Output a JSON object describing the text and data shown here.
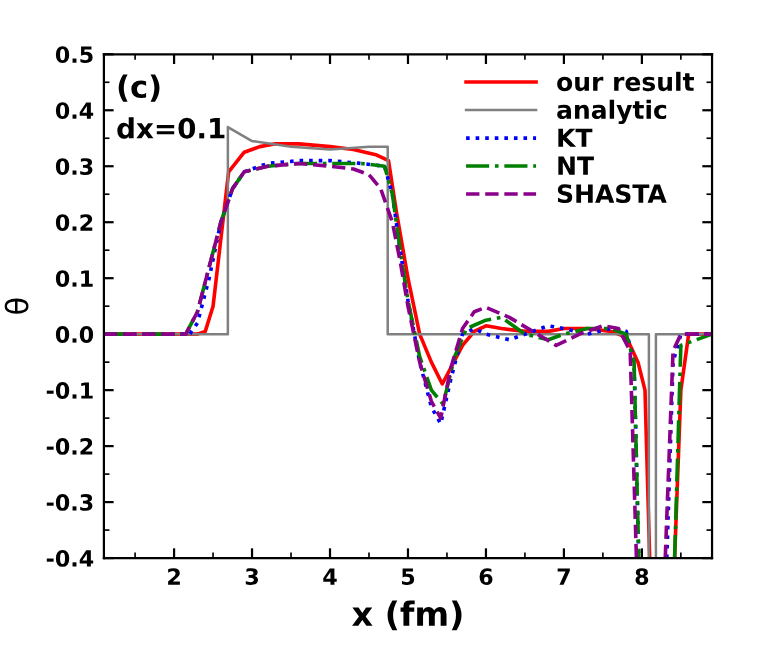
{
  "chart_data": {
    "type": "line",
    "xlabel": "x (fm)",
    "ylabel": "θ",
    "xlim": [
      1.1,
      8.9
    ],
    "ylim": [
      -0.4,
      0.5
    ],
    "xticks": [
      2,
      3,
      4,
      5,
      6,
      7,
      8
    ],
    "yticks": [
      -0.4,
      -0.3,
      -0.2,
      -0.1,
      {
        "value": 0,
        "label": "0.0"
      },
      0.1,
      0.2,
      0.3,
      0.4,
      0.5
    ],
    "grid": false,
    "legend": "top right",
    "annotations": [
      "(c)",
      "dx=0.1"
    ],
    "series": [
      {
        "name": "our result",
        "color": "#ff0000",
        "line_style": "solid",
        "x": [
          1.1,
          2.3,
          2.4,
          2.5,
          2.6,
          2.7,
          2.9,
          3.1,
          3.3,
          3.6,
          4.0,
          4.3,
          4.6,
          4.75,
          4.85,
          5.0,
          5.15,
          5.3,
          5.44,
          5.55,
          5.7,
          5.85,
          6.0,
          6.2,
          6.5,
          6.8,
          7.0,
          7.3,
          7.6,
          7.8,
          7.95,
          8.04,
          8.1,
          null,
          8.42,
          8.5,
          8.6,
          8.9
        ],
        "values": [
          0,
          0,
          0.005,
          0.05,
          0.17,
          0.29,
          0.325,
          0.335,
          0.34,
          0.34,
          0.335,
          0.33,
          0.32,
          0.31,
          0.22,
          0.1,
          0.0,
          -0.05,
          -0.089,
          -0.06,
          -0.02,
          0.005,
          0.015,
          0.01,
          0.005,
          0.005,
          0.01,
          0.01,
          0.005,
          -0.005,
          -0.05,
          -0.1,
          -0.4,
          null,
          -0.4,
          -0.1,
          0,
          0
        ]
      },
      {
        "name": "analytic",
        "color": "#808080",
        "line_style": "solid",
        "x": [
          1.1,
          2.69,
          2.69,
          3.0,
          3.5,
          4.0,
          4.5,
          4.74,
          4.74,
          8.09,
          8.09,
          null,
          8.18,
          8.18,
          8.9
        ],
        "values": [
          0,
          0,
          0.37,
          0.345,
          0.335,
          0.33,
          0.335,
          0.335,
          0,
          0,
          -0.4,
          null,
          -0.4,
          0,
          0
        ]
      },
      {
        "name": "KT",
        "color": "#0000ff",
        "line_style": "dotted",
        "x": [
          1.1,
          2.2,
          2.3,
          2.45,
          2.6,
          2.75,
          2.9,
          3.2,
          3.6,
          4.0,
          4.4,
          4.7,
          4.8,
          4.9,
          5.0,
          5.15,
          5.3,
          5.42,
          5.55,
          5.7,
          5.85,
          6.0,
          6.3,
          6.6,
          6.8,
          7.0,
          7.3,
          7.6,
          7.8,
          7.9,
          7.96,
          null,
          8.32,
          8.4,
          8.5,
          8.9
        ],
        "values": [
          0,
          0,
          0.02,
          0.1,
          0.2,
          0.26,
          0.29,
          0.305,
          0.31,
          0.31,
          0.305,
          0.3,
          0.25,
          0.15,
          0.06,
          -0.05,
          -0.13,
          -0.16,
          -0.08,
          0.0,
          0.01,
          0.0,
          -0.01,
          0.005,
          0.015,
          0.01,
          0.0,
          0.01,
          0.005,
          -0.05,
          -0.4,
          null,
          -0.4,
          -0.05,
          0,
          0
        ]
      },
      {
        "name": "NT",
        "color": "#008000",
        "line_style": "dashdot",
        "x": [
          1.1,
          2.15,
          2.3,
          2.45,
          2.6,
          2.75,
          2.9,
          3.2,
          3.6,
          4.0,
          4.4,
          4.7,
          4.8,
          4.9,
          5.0,
          5.15,
          5.3,
          5.45,
          5.6,
          5.75,
          6.0,
          6.2,
          6.5,
          6.8,
          7.0,
          7.3,
          7.6,
          7.8,
          7.9,
          7.96,
          null,
          8.42,
          8.5,
          8.9
        ],
        "values": [
          0,
          0,
          0.04,
          0.12,
          0.2,
          0.26,
          0.29,
          0.3,
          0.305,
          0.305,
          0.305,
          0.3,
          0.25,
          0.15,
          0.06,
          -0.04,
          -0.1,
          -0.125,
          -0.04,
          0.01,
          0.025,
          0.03,
          0.0,
          -0.01,
          0.0,
          0.01,
          0.01,
          0.0,
          -0.05,
          -0.4,
          null,
          -0.4,
          -0.02,
          0
        ]
      },
      {
        "name": "SHASTA",
        "color": "#8b008b",
        "line_style": "dashed",
        "x": [
          1.1,
          2.15,
          2.3,
          2.45,
          2.6,
          2.75,
          2.9,
          3.2,
          3.6,
          4.0,
          4.3,
          4.5,
          4.65,
          4.8,
          4.9,
          5.0,
          5.15,
          5.3,
          5.42,
          5.55,
          5.7,
          5.85,
          6.0,
          6.3,
          6.6,
          6.9,
          7.2,
          7.5,
          7.7,
          7.85,
          7.93,
          null,
          8.3,
          8.4,
          8.5,
          8.9
        ],
        "values": [
          0,
          0,
          0.04,
          0.12,
          0.2,
          0.26,
          0.29,
          0.3,
          0.305,
          0.3,
          0.295,
          0.285,
          0.26,
          0.2,
          0.13,
          0.05,
          -0.05,
          -0.12,
          -0.15,
          -0.06,
          0.01,
          0.04,
          0.048,
          0.03,
          0.005,
          -0.02,
          0.0,
          0.015,
          0.01,
          -0.03,
          -0.4,
          null,
          -0.4,
          -0.03,
          0,
          0
        ]
      }
    ]
  }
}
